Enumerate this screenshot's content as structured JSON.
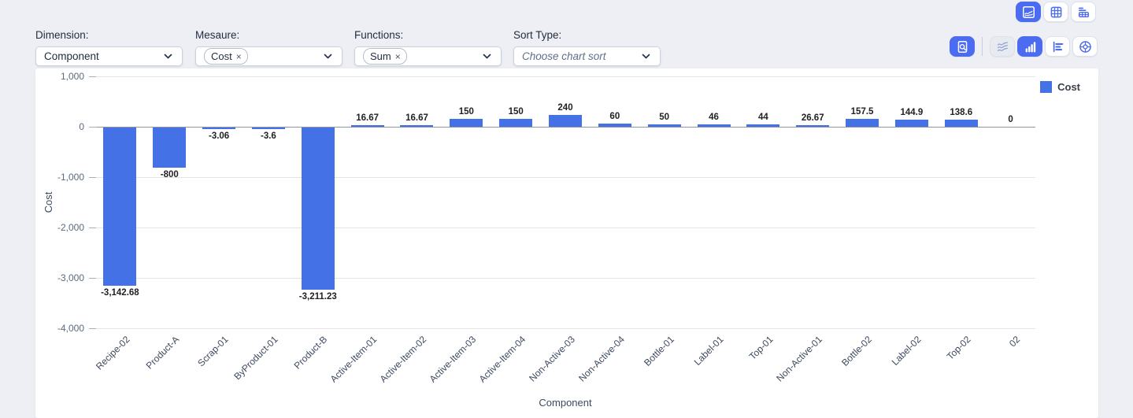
{
  "colors": {
    "accent": "#4b6bf0",
    "bar": "#4471e5"
  },
  "controls": {
    "dimension": {
      "label": "Dimension:",
      "value": "Component"
    },
    "measure": {
      "label": "Mesaure:",
      "tags": [
        {
          "text": "Cost",
          "remove_icon": "×"
        }
      ]
    },
    "functions": {
      "label": "Functions:",
      "tags": [
        {
          "text": "Sum",
          "remove_icon": "×"
        }
      ]
    },
    "sort_type": {
      "label": "Sort Type:",
      "placeholder": "Choose chart sort"
    }
  },
  "toolbar": {
    "row1": [
      {
        "icon": "sketch-chart-icon",
        "state": "active"
      },
      {
        "icon": "data-grid-icon",
        "state": "normal"
      },
      {
        "icon": "pivot-table-icon",
        "state": "normal"
      }
    ],
    "row2": [
      {
        "icon": "report-preview-icon",
        "state": "active"
      },
      {
        "icon": "area-chart-icon",
        "state": "disabled"
      },
      {
        "icon": "bar-chart-icon",
        "state": "active"
      },
      {
        "icon": "horizontal-bar-chart-icon",
        "state": "normal"
      },
      {
        "icon": "donut-chart-icon",
        "state": "normal"
      }
    ]
  },
  "chart_data": {
    "type": "bar",
    "title": "",
    "xlabel": "Component",
    "ylabel": "Cost",
    "legend": [
      "Cost"
    ],
    "legend_position": "top-right",
    "grid": true,
    "ylim": [
      -4000,
      1000
    ],
    "yticks": [
      1000,
      0,
      -1000,
      -2000,
      -3000,
      -4000
    ],
    "ytick_labels": [
      "1,000",
      "0",
      "-1,000",
      "-2,000",
      "-3,000",
      "-4,000"
    ],
    "categories": [
      "Recipe-02",
      "Product-A",
      "Scrap-01",
      "ByProduct-01",
      "Product-B",
      "Active-Item-01",
      "Active-Item-02",
      "Active-Item-03",
      "Active-Item-04",
      "Non-Active-03",
      "Non-Active-04",
      "Bottle-01",
      "Label-01",
      "Top-01",
      "Non-Active-01",
      "Bottle-02",
      "Label-02",
      "Top-02",
      "02"
    ],
    "series": [
      {
        "name": "Cost",
        "color": "#4471e5",
        "values": [
          -3142.68,
          -800,
          -3.06,
          -3.6,
          -3211.23,
          16.67,
          16.67,
          150,
          150,
          240,
          60,
          50,
          46,
          44,
          26.67,
          157.5,
          144.9,
          138.6,
          0
        ],
        "value_labels": [
          "-3,142.68",
          "-800",
          "-3.06",
          "-3.6",
          "-3,211.23",
          "16.67",
          "16.67",
          "150",
          "150",
          "240",
          "60",
          "50",
          "46",
          "44",
          "26.67",
          "157.5",
          "144.9",
          "138.6",
          "0"
        ]
      }
    ]
  }
}
